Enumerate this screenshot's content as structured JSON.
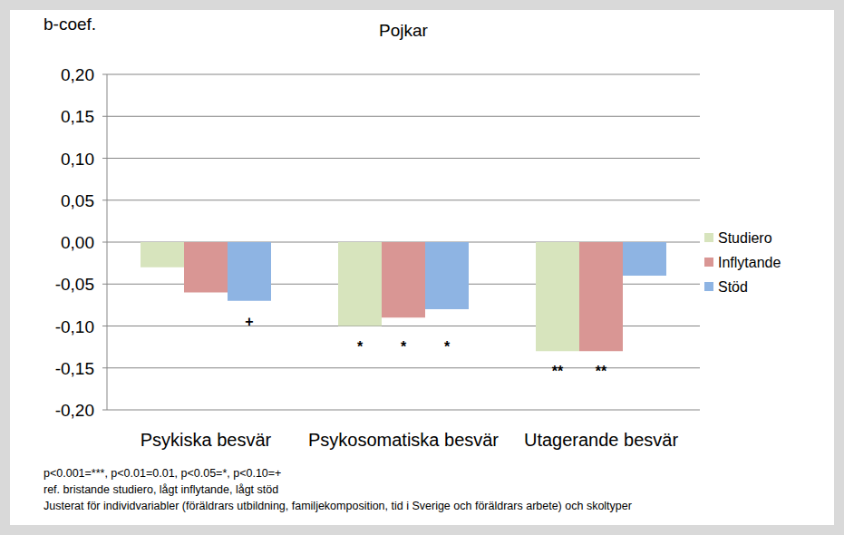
{
  "chart_data": {
    "type": "bar",
    "title": "Pojkar",
    "y_label": "b-coef.",
    "categories": [
      "Psykiska besvär",
      "Psykosomatiska besvär",
      "Utagerande besvär"
    ],
    "series": [
      {
        "name": "Studiero",
        "color": "#d7e4bd",
        "values": [
          -0.03,
          -0.1,
          -0.13
        ],
        "significance": [
          null,
          "*",
          "**"
        ]
      },
      {
        "name": "Inflytande",
        "color": "#d99694",
        "values": [
          -0.06,
          -0.09,
          -0.13
        ],
        "significance": [
          null,
          "*",
          "**"
        ]
      },
      {
        "name": "Stöd",
        "color": "#8eb4e3",
        "values": [
          -0.07,
          -0.08,
          -0.04
        ],
        "significance": [
          "+",
          "*",
          null
        ]
      }
    ],
    "ylim": [
      -0.2,
      0.2
    ],
    "yticks": [
      {
        "value": 0.2,
        "label": "0,20"
      },
      {
        "value": 0.15,
        "label": "0,15"
      },
      {
        "value": 0.1,
        "label": "0,10"
      },
      {
        "value": 0.05,
        "label": "0,05"
      },
      {
        "value": 0,
        "label": "0,00"
      },
      {
        "value": -0.05,
        "label": "-0,05"
      },
      {
        "value": -0.1,
        "label": "-0,10"
      },
      {
        "value": -0.15,
        "label": "-0,15"
      },
      {
        "value": -0.2,
        "label": "-0,20"
      }
    ],
    "grid": true,
    "legend": "right",
    "notes": [
      "p<0.001=***, p<0.01=0.01, p<0.05=*, p<0.10=+",
      "ref. bristande studiero, lågt inflytande, lågt stöd",
      "Justerat för individvariabler (föräldrars utbildning, familjekomposition, tid i Sverige och föräldrars arbete) och skoltyper"
    ]
  }
}
